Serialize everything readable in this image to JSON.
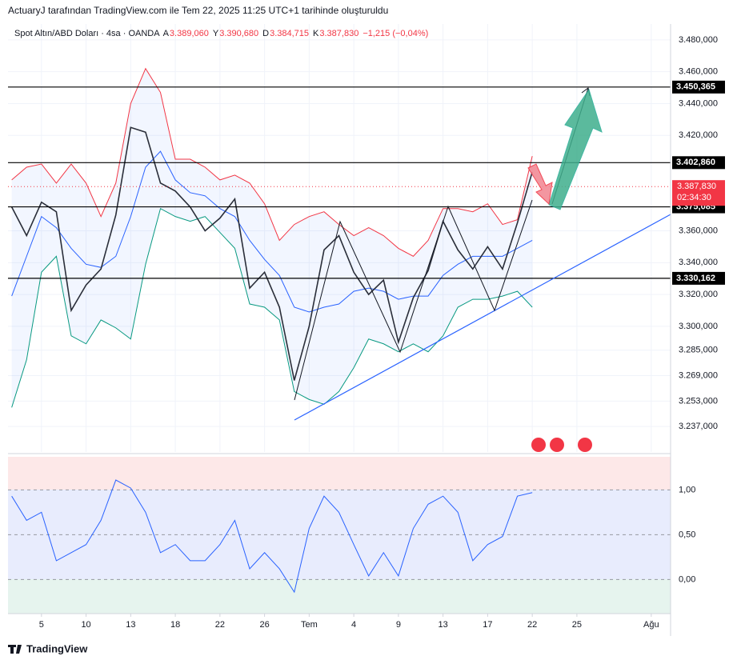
{
  "header": {
    "credit": "ActuaryJ tarafından TradingView.com ile Tem 22, 2025 11:25 UTC+1 tarihinde oluşturuldu"
  },
  "footer": {
    "brand": "TradingView"
  },
  "chart_data": [
    {
      "type": "line",
      "symbol": "Spot Altın/ABD Doları · 4sa · OANDA",
      "ohlc": [
        {
          "key": "A",
          "value": "3.389,060"
        },
        {
          "key": "Y",
          "value": "3.390,680"
        },
        {
          "key": "D",
          "value": "3.384,715"
        },
        {
          "key": "K",
          "value": "3.387,830"
        }
      ],
      "change": "−1,215 (−0,04%)",
      "x": [
        -2,
        -1,
        0,
        1,
        2,
        3,
        4,
        5,
        6,
        7,
        8,
        9,
        10,
        11,
        12,
        13,
        14,
        15,
        16,
        17,
        18,
        19,
        20,
        21,
        22,
        23,
        24,
        25,
        26,
        27,
        28,
        29,
        30,
        31,
        32,
        33
      ],
      "series": [
        {
          "color": "#2a2e39",
          "values": [
            3375,
            3357,
            3378,
            3372,
            3310,
            3326,
            3336,
            3370,
            3425,
            3422,
            3390,
            3385,
            3375,
            3360,
            3368,
            3380,
            3324,
            3334,
            3312,
            3266,
            3300,
            3348,
            3357,
            3334,
            3320,
            3329,
            3290,
            3318,
            3335,
            3366,
            3348,
            3336,
            3350,
            3336,
            3365,
            3397
          ]
        },
        {
          "color": "#f23645",
          "values": [
            3392,
            3400,
            3402,
            3390,
            3402,
            3390,
            3369,
            3390,
            3440,
            3462,
            3447,
            3405,
            3405,
            3400,
            3392,
            3395,
            3390,
            3377,
            3354,
            3364,
            3369,
            3372,
            3364,
            3357,
            3362,
            3357,
            3349,
            3344,
            3354,
            3374,
            3374,
            3372,
            3377,
            3364,
            3367,
            3407
          ]
        },
        {
          "color": "#2962ff",
          "values": [
            3319,
            3344,
            3369,
            3362,
            3349,
            3339,
            3337,
            3344,
            3369,
            3400,
            3410,
            3392,
            3384,
            3382,
            3374,
            3369,
            3354,
            3342,
            3332,
            3312,
            3309,
            3312,
            3314,
            3322,
            3324,
            3322,
            3317,
            3319,
            3319,
            3332,
            3339,
            3344,
            3344,
            3344,
            3349,
            3354
          ]
        },
        {
          "color": "#089981",
          "values": [
            3249,
            3279,
            3334,
            3344,
            3294,
            3289,
            3304,
            3299,
            3292,
            3339,
            3374,
            3369,
            3366,
            3369,
            3359,
            3349,
            3314,
            3312,
            3304,
            3259,
            3254,
            3251,
            3259,
            3274,
            3292,
            3289,
            3284,
            3289,
            3284,
            3294,
            3312,
            3317,
            3317,
            3319,
            3322,
            3312
          ]
        }
      ],
      "levels": [
        {
          "value": 3450.365,
          "label": "3.450,365"
        },
        {
          "value": 3402.86,
          "label": "3.402,860"
        },
        {
          "value": 3375.085,
          "label": "3.375,085"
        },
        {
          "value": 3330.162,
          "label": "3.330,162"
        }
      ],
      "last_price": {
        "value": 3387.83,
        "label": "3.387,830"
      },
      "countdown": "02:34:30",
      "xlim": [
        -2.25,
        42.3
      ],
      "xticks": [
        {
          "value": 0,
          "label": "5"
        },
        {
          "value": 3,
          "label": "10"
        },
        {
          "value": 6,
          "label": "13"
        },
        {
          "value": 9,
          "label": "18"
        },
        {
          "value": 12,
          "label": "22"
        },
        {
          "value": 15,
          "label": "26"
        },
        {
          "value": 18,
          "label": "Tem"
        },
        {
          "value": 21,
          "label": "4"
        },
        {
          "value": 24,
          "label": "9"
        },
        {
          "value": 27,
          "label": "13"
        },
        {
          "value": 30,
          "label": "17"
        },
        {
          "value": 33,
          "label": "22"
        },
        {
          "value": 36,
          "label": "25"
        },
        {
          "value": 41,
          "label": "Ağu"
        }
      ],
      "ylim": [
        3221,
        3490
      ],
      "yticks": [
        {
          "value": 3480,
          "label": "3.480,000"
        },
        {
          "value": 3460,
          "label": "3.460,000"
        },
        {
          "value": 3440,
          "label": "3.440,000"
        },
        {
          "value": 3420,
          "label": "3.420,000"
        },
        {
          "value": 3360,
          "label": "3.360,000"
        },
        {
          "value": 3340,
          "label": "3.340,000"
        },
        {
          "value": 3320,
          "label": "3.320,000"
        },
        {
          "value": 3300,
          "label": "3.300,000"
        },
        {
          "value": 3285,
          "label": "3.285,000"
        },
        {
          "value": 3269,
          "label": "3.269,000"
        },
        {
          "value": 3253,
          "label": "3.253,000"
        },
        {
          "value": 3237,
          "label": "3.237,000"
        }
      ],
      "grid": true
    },
    {
      "type": "line",
      "x": [
        -2,
        -1,
        0,
        1,
        2,
        3,
        4,
        5,
        6,
        7,
        8,
        9,
        10,
        11,
        12,
        13,
        14,
        15,
        16,
        17,
        18,
        19,
        20,
        21,
        22,
        23,
        24,
        25,
        26,
        27,
        28,
        29,
        30,
        31,
        32,
        33
      ],
      "series": [
        {
          "color": "#2962ff",
          "values": [
            0.93,
            0.66,
            0.75,
            0.21,
            0.3,
            0.39,
            0.66,
            1.11,
            1.02,
            0.75,
            0.3,
            0.39,
            0.21,
            0.21,
            0.39,
            0.66,
            0.12,
            0.3,
            0.12,
            -0.14,
            0.57,
            0.93,
            0.75,
            0.39,
            0.04,
            0.3,
            0.04,
            0.57,
            0.84,
            0.93,
            0.75,
            0.21,
            0.39,
            0.48,
            0.93,
            0.97
          ]
        }
      ],
      "xlim": [
        -2.25,
        42.3
      ],
      "ylim": [
        -0.38,
        1.36
      ],
      "yticks": [
        {
          "value": 1,
          "label": "1,00"
        },
        {
          "value": 0.5,
          "label": "0,50"
        },
        {
          "value": 0,
          "label": "0,00"
        }
      ],
      "grid": true
    }
  ]
}
